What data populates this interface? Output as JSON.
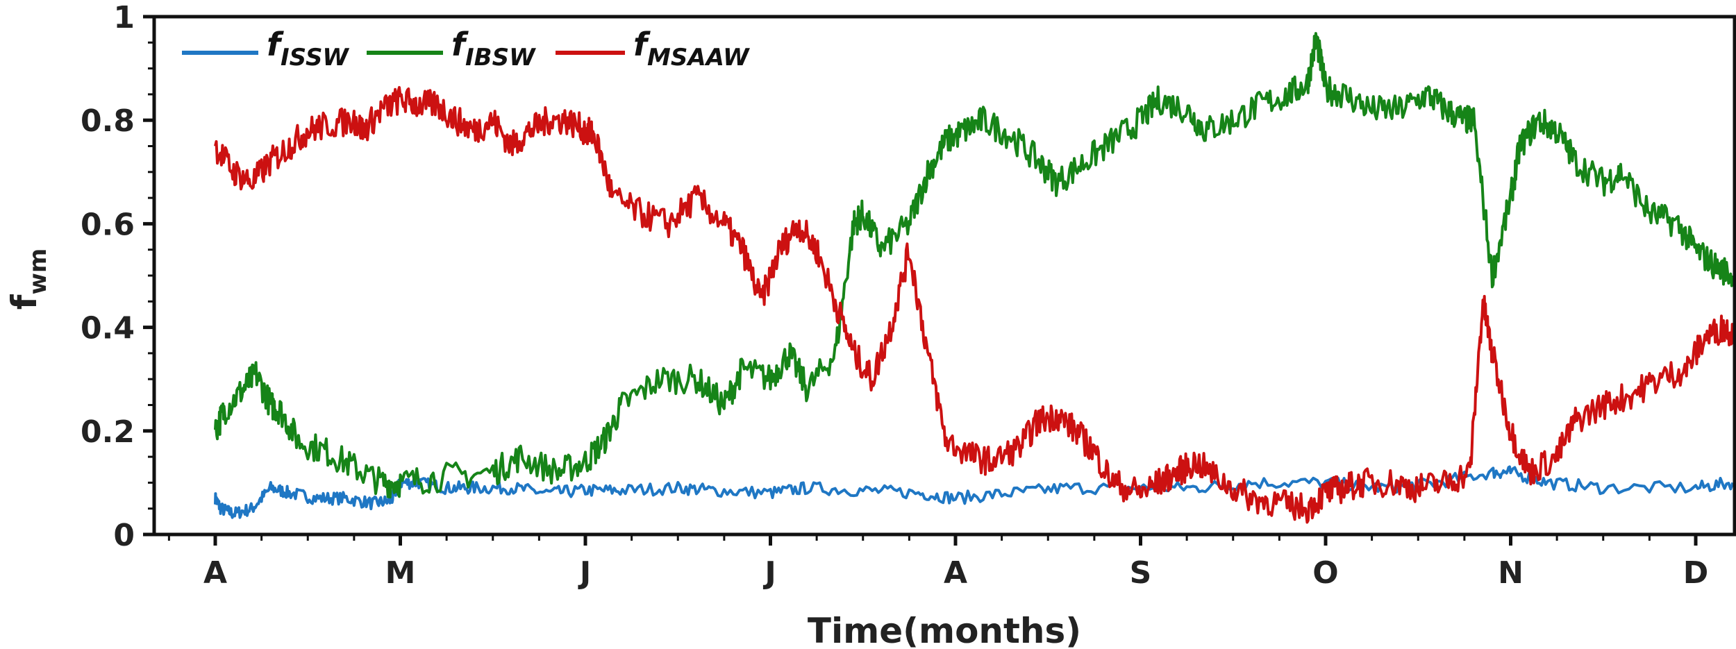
{
  "chart_data": {
    "type": "line",
    "xlabel": "Time(months)",
    "ylabel_main": "f",
    "ylabel_sub": "wm",
    "ylim": [
      0,
      1
    ],
    "yticks": [
      "0",
      "0.2",
      "0.4",
      "0.6",
      "0.8",
      "1"
    ],
    "xtick_labels": [
      "A",
      "M",
      "J",
      "J",
      "A",
      "S",
      "O",
      "N",
      "D"
    ],
    "grid": false,
    "legend_position": "top-left",
    "series": [
      {
        "name_main": "f",
        "name_sub": "ISSW",
        "color": "#1f77c4",
        "points": [
          [
            0,
            0.07
          ],
          [
            0.03,
            0.05
          ],
          [
            0.1,
            0.04
          ],
          [
            0.2,
            0.05
          ],
          [
            0.3,
            0.09
          ],
          [
            0.4,
            0.08
          ],
          [
            0.55,
            0.07
          ],
          [
            0.7,
            0.07
          ],
          [
            0.85,
            0.06
          ],
          [
            0.95,
            0.065
          ],
          [
            1.0,
            0.1
          ],
          [
            1.1,
            0.1
          ],
          [
            1.25,
            0.09
          ],
          [
            1.4,
            0.09
          ],
          [
            1.6,
            0.09
          ],
          [
            1.8,
            0.08
          ],
          [
            2.0,
            0.085
          ],
          [
            2.2,
            0.085
          ],
          [
            2.5,
            0.09
          ],
          [
            2.7,
            0.085
          ],
          [
            3.0,
            0.08
          ],
          [
            3.2,
            0.09
          ],
          [
            3.5,
            0.085
          ],
          [
            3.8,
            0.08
          ],
          [
            4.0,
            0.07
          ],
          [
            4.3,
            0.08
          ],
          [
            4.6,
            0.09
          ],
          [
            5.0,
            0.09
          ],
          [
            5.3,
            0.09
          ],
          [
            5.6,
            0.1
          ],
          [
            6.0,
            0.1
          ],
          [
            6.3,
            0.09
          ],
          [
            6.6,
            0.1
          ],
          [
            6.9,
            0.12
          ],
          [
            7.0,
            0.12
          ],
          [
            7.2,
            0.1
          ],
          [
            7.5,
            0.09
          ],
          [
            8.0,
            0.09
          ],
          [
            8.2,
            0.1
          ]
        ]
      },
      {
        "name_main": "f",
        "name_sub": "IBSW",
        "color": "#168418",
        "points": [
          [
            0,
            0.2
          ],
          [
            0.05,
            0.24
          ],
          [
            0.15,
            0.28
          ],
          [
            0.22,
            0.31
          ],
          [
            0.3,
            0.25
          ],
          [
            0.35,
            0.24
          ],
          [
            0.45,
            0.18
          ],
          [
            0.6,
            0.16
          ],
          [
            0.75,
            0.13
          ],
          [
            0.9,
            0.1
          ],
          [
            1.0,
            0.1
          ],
          [
            1.2,
            0.11
          ],
          [
            1.5,
            0.12
          ],
          [
            1.65,
            0.15
          ],
          [
            1.85,
            0.12
          ],
          [
            2.0,
            0.14
          ],
          [
            2.1,
            0.18
          ],
          [
            2.2,
            0.25
          ],
          [
            2.4,
            0.3
          ],
          [
            2.6,
            0.3
          ],
          [
            2.75,
            0.25
          ],
          [
            2.85,
            0.32
          ],
          [
            3.0,
            0.3
          ],
          [
            3.1,
            0.35
          ],
          [
            3.2,
            0.28
          ],
          [
            3.35,
            0.35
          ],
          [
            3.45,
            0.6
          ],
          [
            3.5,
            0.62
          ],
          [
            3.6,
            0.55
          ],
          [
            3.75,
            0.6
          ],
          [
            3.85,
            0.7
          ],
          [
            3.95,
            0.76
          ],
          [
            4.05,
            0.78
          ],
          [
            4.15,
            0.8
          ],
          [
            4.3,
            0.77
          ],
          [
            4.45,
            0.72
          ],
          [
            4.55,
            0.68
          ],
          [
            4.7,
            0.72
          ],
          [
            4.85,
            0.76
          ],
          [
            5.0,
            0.8
          ],
          [
            5.1,
            0.84
          ],
          [
            5.25,
            0.82
          ],
          [
            5.35,
            0.78
          ],
          [
            5.5,
            0.8
          ],
          [
            5.65,
            0.83
          ],
          [
            5.8,
            0.85
          ],
          [
            5.9,
            0.87
          ],
          [
            5.95,
            0.96
          ],
          [
            6.0,
            0.86
          ],
          [
            6.1,
            0.85
          ],
          [
            6.25,
            0.82
          ],
          [
            6.4,
            0.82
          ],
          [
            6.55,
            0.85
          ],
          [
            6.65,
            0.82
          ],
          [
            6.75,
            0.8
          ],
          [
            6.8,
            0.8
          ],
          [
            6.9,
            0.5
          ],
          [
            7.0,
            0.65
          ],
          [
            7.05,
            0.75
          ],
          [
            7.15,
            0.8
          ],
          [
            7.25,
            0.78
          ],
          [
            7.35,
            0.72
          ],
          [
            7.5,
            0.68
          ],
          [
            7.6,
            0.7
          ],
          [
            7.75,
            0.62
          ],
          [
            7.9,
            0.6
          ],
          [
            8.0,
            0.55
          ],
          [
            8.1,
            0.52
          ],
          [
            8.2,
            0.5
          ]
        ]
      },
      {
        "name_main": "f",
        "name_sub": "MSAAW",
        "color": "#cc1111",
        "points": [
          [
            0,
            0.75
          ],
          [
            0.1,
            0.7
          ],
          [
            0.2,
            0.68
          ],
          [
            0.3,
            0.72
          ],
          [
            0.4,
            0.75
          ],
          [
            0.5,
            0.78
          ],
          [
            0.6,
            0.79
          ],
          [
            0.75,
            0.8
          ],
          [
            0.8,
            0.78
          ],
          [
            0.9,
            0.82
          ],
          [
            1.0,
            0.84
          ],
          [
            1.1,
            0.83
          ],
          [
            1.2,
            0.83
          ],
          [
            1.3,
            0.8
          ],
          [
            1.4,
            0.78
          ],
          [
            1.5,
            0.8
          ],
          [
            1.6,
            0.75
          ],
          [
            1.7,
            0.78
          ],
          [
            1.8,
            0.8
          ],
          [
            1.9,
            0.8
          ],
          [
            2.0,
            0.78
          ],
          [
            2.05,
            0.77
          ],
          [
            2.15,
            0.65
          ],
          [
            2.3,
            0.62
          ],
          [
            2.45,
            0.6
          ],
          [
            2.6,
            0.65
          ],
          [
            2.75,
            0.6
          ],
          [
            2.85,
            0.55
          ],
          [
            2.95,
            0.45
          ],
          [
            3.05,
            0.55
          ],
          [
            3.15,
            0.6
          ],
          [
            3.25,
            0.55
          ],
          [
            3.35,
            0.45
          ],
          [
            3.45,
            0.35
          ],
          [
            3.55,
            0.3
          ],
          [
            3.65,
            0.4
          ],
          [
            3.75,
            0.55
          ],
          [
            3.85,
            0.35
          ],
          [
            3.95,
            0.18
          ],
          [
            4.1,
            0.15
          ],
          [
            4.2,
            0.14
          ],
          [
            4.35,
            0.17
          ],
          [
            4.45,
            0.22
          ],
          [
            4.55,
            0.23
          ],
          [
            4.65,
            0.2
          ],
          [
            4.75,
            0.16
          ],
          [
            4.85,
            0.1
          ],
          [
            5.0,
            0.08
          ],
          [
            5.1,
            0.1
          ],
          [
            5.2,
            0.12
          ],
          [
            5.3,
            0.14
          ],
          [
            5.45,
            0.1
          ],
          [
            5.6,
            0.07
          ],
          [
            5.75,
            0.06
          ],
          [
            5.9,
            0.05
          ],
          [
            6.0,
            0.08
          ],
          [
            6.1,
            0.09
          ],
          [
            6.2,
            0.1
          ],
          [
            6.35,
            0.1
          ],
          [
            6.5,
            0.09
          ],
          [
            6.65,
            0.1
          ],
          [
            6.78,
            0.12
          ],
          [
            6.85,
            0.45
          ],
          [
            6.9,
            0.35
          ],
          [
            7.0,
            0.2
          ],
          [
            7.1,
            0.12
          ],
          [
            7.25,
            0.15
          ],
          [
            7.35,
            0.22
          ],
          [
            7.5,
            0.25
          ],
          [
            7.65,
            0.27
          ],
          [
            7.8,
            0.3
          ],
          [
            7.95,
            0.32
          ],
          [
            8.05,
            0.38
          ],
          [
            8.15,
            0.4
          ],
          [
            8.2,
            0.39
          ]
        ]
      }
    ]
  }
}
